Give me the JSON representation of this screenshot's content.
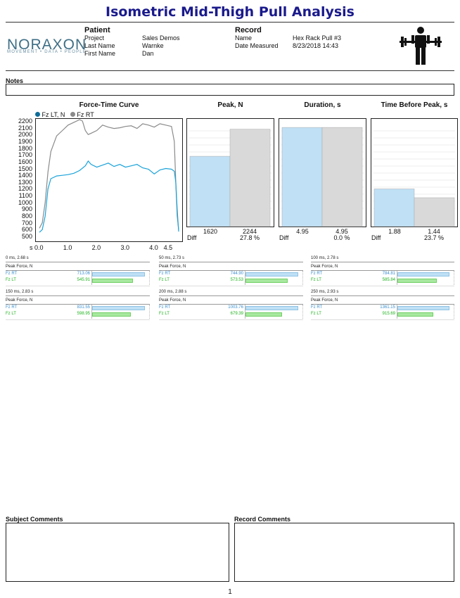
{
  "title": "Isometric Mid-Thigh Pull Analysis",
  "logo": {
    "name": "NORAXON",
    "tagline": "MOVEMENT • DATA • PEOPLE"
  },
  "patient": {
    "heading": "Patient",
    "rows": [
      {
        "label": "Project",
        "value": "Sales Demos"
      },
      {
        "label": "Last Name",
        "value": "Warnke"
      },
      {
        "label": "First Name",
        "value": "Dan"
      }
    ]
  },
  "record": {
    "heading": "Record",
    "rows": [
      {
        "label": "Name",
        "value": "Hex Rack Pull #3"
      },
      {
        "label": "Date Measured",
        "value": "8/23/2018 14:43"
      }
    ]
  },
  "notes_label": "Notes",
  "force_time": {
    "heading": "Force-Time Curve",
    "legend": [
      {
        "name": "Fz LT, N",
        "color": "#0e6c99"
      },
      {
        "name": "Fz RT",
        "color": "#8a8a8a"
      }
    ],
    "y_ticks": [
      "2200",
      "2100",
      "2000",
      "1900",
      "1800",
      "1700",
      "1600",
      "1500",
      "1400",
      "1300",
      "1200",
      "1100",
      "1000",
      "900",
      "800",
      "700",
      "600",
      "500"
    ],
    "x_ticks": [
      "s 0.0",
      "1.0",
      "2.0",
      "3.0",
      "4.0",
      "4.5"
    ]
  },
  "chart_data": [
    {
      "type": "line",
      "title": "Force-Time Curve",
      "xlabel": "s",
      "ylabel": "N",
      "ylim": [
        500,
        2200
      ],
      "xlim": [
        0,
        4.9
      ],
      "series": [
        {
          "name": "Fz LT, N",
          "color": "#1aa3d9",
          "x": [
            0,
            0.1,
            0.2,
            0.3,
            0.4,
            0.6,
            0.8,
            1.0,
            1.2,
            1.4,
            1.6,
            1.7,
            1.8,
            2.0,
            2.2,
            2.4,
            2.6,
            2.8,
            3.0,
            3.2,
            3.4,
            3.6,
            3.8,
            4.0,
            4.2,
            4.4,
            4.6,
            4.7,
            4.75,
            4.8,
            4.85
          ],
          "values": [
            560,
            600,
            800,
            1200,
            1350,
            1390,
            1400,
            1410,
            1430,
            1470,
            1540,
            1610,
            1560,
            1520,
            1550,
            1580,
            1530,
            1560,
            1520,
            1540,
            1560,
            1510,
            1490,
            1420,
            1480,
            1500,
            1490,
            1460,
            1300,
            900,
            570
          ]
        },
        {
          "name": "Fz RT",
          "color": "#8a8a8a",
          "x": [
            0,
            0.1,
            0.2,
            0.3,
            0.4,
            0.6,
            0.8,
            1.0,
            1.2,
            1.4,
            1.5,
            1.6,
            1.7,
            1.8,
            2.0,
            2.2,
            2.4,
            2.6,
            2.8,
            3.0,
            3.2,
            3.4,
            3.6,
            3.8,
            4.0,
            4.2,
            4.4,
            4.6,
            4.7,
            4.75,
            4.8,
            4.85
          ],
          "values": [
            620,
            700,
            1000,
            1450,
            1750,
            1980,
            2060,
            2140,
            2180,
            2220,
            2200,
            2060,
            2000,
            2020,
            2060,
            2140,
            2110,
            2090,
            2100,
            2120,
            2130,
            2090,
            2160,
            2140,
            2110,
            2160,
            2140,
            2120,
            1900,
            1300,
            800,
            600
          ]
        }
      ]
    },
    {
      "type": "bar",
      "title": "Peak, N",
      "categories": [
        "LT",
        "RT"
      ],
      "values": [
        1620,
        2244
      ],
      "colors": [
        "#bfe0f5",
        "#d9d9d9"
      ],
      "ylim": [
        0,
        2400
      ],
      "diff": "27.8 %"
    },
    {
      "type": "bar",
      "title": "Duration, s",
      "categories": [
        "LT",
        "RT"
      ],
      "values": [
        4.95,
        4.95
      ],
      "colors": [
        "#bfe0f5",
        "#d9d9d9"
      ],
      "ylim": [
        0,
        5.2
      ],
      "diff": "0.0 %"
    },
    {
      "type": "bar",
      "title": "Time Before Peak, s",
      "categories": [
        "LT",
        "RT"
      ],
      "values": [
        1.88,
        1.44
      ],
      "colors": [
        "#bfe0f5",
        "#d9d9d9"
      ],
      "ylim": [
        0,
        5.2
      ],
      "diff": "23.7 %"
    }
  ],
  "bar_panels": [
    {
      "heading": "Peak, N",
      "lt_label": "1620",
      "rt_label": "2244",
      "diff_label": "Diff",
      "diff_value": "27.8 %"
    },
    {
      "heading": "Duration, s",
      "lt_label": "4.95",
      "rt_label": "4.95",
      "diff_label": "Diff",
      "diff_value": "0.0 %"
    },
    {
      "heading": "Time Before Peak, s",
      "lt_label": "1.88",
      "rt_label": "1.44",
      "diff_label": "Diff",
      "diff_value": "23.7 %"
    }
  ],
  "trials": [
    {
      "header": "0 ms, 2.68 s",
      "sub": "Peak Force, N",
      "rt_label": "Fz RT",
      "rt_value": "713.06",
      "rt_frac": 0.98,
      "lt_label": "Fz LT",
      "lt_value": "545.91",
      "lt_frac": 0.75
    },
    {
      "header": "50 ms, 2.73 s",
      "sub": "Peak Force, N",
      "rt_label": "Fz RT",
      "rt_value": "744.90",
      "rt_frac": 0.98,
      "lt_label": "Fz LT",
      "lt_value": "573.53",
      "lt_frac": 0.78
    },
    {
      "header": "100 ms, 2.78 s",
      "sub": "Peak Force, N",
      "rt_label": "Fz RT",
      "rt_value": "784.81",
      "rt_frac": 0.98,
      "lt_label": "Fz LT",
      "lt_value": "585.84",
      "lt_frac": 0.74
    },
    {
      "header": "150 ms, 2.83 s",
      "sub": "Peak Force, N",
      "rt_label": "Fz RT",
      "rt_value": "831.55",
      "rt_frac": 0.98,
      "lt_label": "Fz LT",
      "lt_value": "598.95",
      "lt_frac": 0.72
    },
    {
      "header": "200 ms, 2.88 s",
      "sub": "Peak Force, N",
      "rt_label": "Fz RT",
      "rt_value": "1003.76",
      "rt_frac": 0.98,
      "lt_label": "Fz LT",
      "lt_value": "679.39",
      "lt_frac": 0.68
    },
    {
      "header": "250 ms, 2.93 s",
      "sub": "Peak Force, N",
      "rt_label": "Fz RT",
      "rt_value": "1361.15",
      "rt_frac": 0.98,
      "lt_label": "Fz LT",
      "lt_value": "915.69",
      "lt_frac": 0.67
    }
  ],
  "comments": {
    "subject": "Subject Comments",
    "record": "Record Comments"
  },
  "page_number": "1",
  "icons": {
    "header_icon": "weightlifter-icon"
  },
  "colors": {
    "title": "#1a1a8c",
    "lt": "#1aa3d9",
    "rt": "#8a8a8a",
    "bar_lt": "#bfe0f5",
    "bar_rt": "#d9d9d9",
    "trial_rt": "#3a8fd0",
    "trial_lt": "#1fb31f"
  }
}
